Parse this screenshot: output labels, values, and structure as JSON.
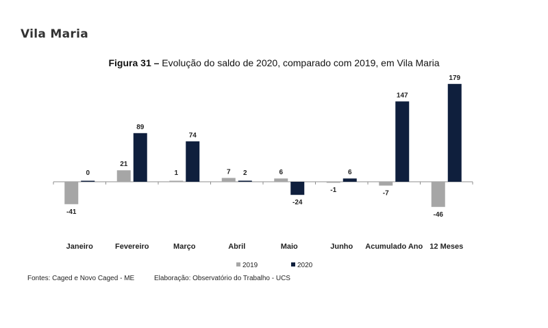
{
  "page": {
    "section_title": "Vila Maria"
  },
  "caption": {
    "label": "Figura 31 –",
    "text": "Evolução do saldo de 2020, comparado com 2019, em Vila Maria"
  },
  "footer": {
    "source": "Fontes: Caged e Novo Caged - ME",
    "credit": "Elaboração: Observatório do Trabalho - UCS"
  },
  "chart_data": {
    "type": "bar",
    "categories": [
      "Janeiro",
      "Fevereiro",
      "Março",
      "Abril",
      "Maio",
      "Junho",
      "Acumulado Ano",
      "12 Meses"
    ],
    "series": [
      {
        "name": "2019",
        "values": [
          -41,
          21,
          1,
          7,
          6,
          -1,
          -7,
          -46
        ],
        "color": "#a6a6a6"
      },
      {
        "name": "2020",
        "values": [
          0,
          89,
          74,
          2,
          -24,
          6,
          147,
          179
        ],
        "color": "#0f1f3d"
      }
    ],
    "legend_position": "bottom",
    "grid": false,
    "ylim": [
      -60,
      185
    ]
  }
}
